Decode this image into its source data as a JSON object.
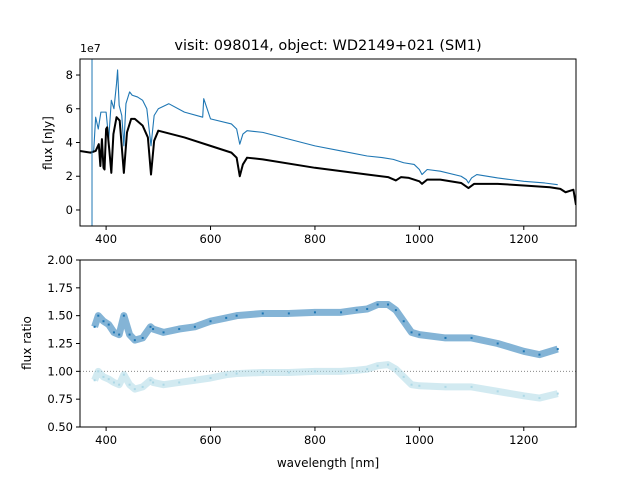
{
  "chart_data": [
    {
      "type": "line",
      "title": "visit: 098014, object: WD2149+021 (SM1)",
      "xlabel": "",
      "ylabel": "flux [nJy]",
      "offset_label": "1e7",
      "xlim": [
        350,
        1300
      ],
      "ylim": [
        -0.95,
        8.95
      ],
      "xticks": [
        400,
        600,
        800,
        1000,
        1200
      ],
      "xtick_labels": [
        "400",
        "600",
        "800",
        "1000",
        "1200"
      ],
      "yticks": [
        0,
        2,
        4,
        6,
        8
      ],
      "ytick_labels": [
        "0",
        "2",
        "4",
        "6",
        "8"
      ],
      "series": [
        {
          "name": "observed",
          "color": "#1f77b4",
          "x": [
            376,
            380,
            385,
            390,
            400,
            405,
            410,
            415,
            420,
            422,
            425,
            430,
            434,
            438,
            445,
            450,
            460,
            470,
            478,
            486,
            492,
            500,
            520,
            550,
            585,
            587,
            600,
            640,
            650,
            656,
            662,
            670,
            700,
            750,
            800,
            850,
            900,
            930,
            950,
            970,
            990,
            1000,
            1005,
            1015,
            1040,
            1080,
            1090,
            1094,
            1100,
            1110,
            1150,
            1200,
            1240,
            1265
          ],
          "y": [
            3.4,
            5.5,
            4.8,
            5.8,
            5.8,
            4.2,
            6.5,
            6.0,
            7.5,
            8.3,
            6.2,
            5.6,
            3.8,
            6.3,
            7.0,
            6.8,
            6.7,
            6.5,
            6.0,
            3.8,
            5.6,
            6.0,
            6.3,
            5.8,
            5.5,
            6.6,
            5.4,
            5.1,
            4.8,
            3.9,
            4.5,
            4.7,
            4.6,
            4.2,
            3.8,
            3.5,
            3.2,
            3.1,
            3.0,
            2.8,
            2.7,
            2.4,
            2.1,
            2.4,
            2.3,
            2.0,
            1.8,
            1.6,
            1.9,
            2.1,
            1.9,
            1.7,
            1.6,
            1.5
          ]
        },
        {
          "name": "model",
          "color": "#000000",
          "x": [
            350,
            370,
            380,
            386,
            389,
            392,
            395,
            397,
            400,
            402,
            406,
            410,
            414,
            420,
            426,
            434,
            440,
            448,
            455,
            470,
            480,
            486,
            492,
            500,
            550,
            600,
            640,
            650,
            656,
            662,
            670,
            700,
            800,
            900,
            940,
            955,
            965,
            980,
            1000,
            1005,
            1015,
            1040,
            1080,
            1094,
            1105,
            1150,
            1200,
            1250,
            1270,
            1280,
            1295,
            1300
          ],
          "y": [
            3.5,
            3.4,
            3.5,
            3.9,
            2.6,
            4.2,
            2.5,
            2.4,
            4.8,
            4.9,
            3.6,
            2.2,
            4.5,
            5.5,
            5.3,
            2.2,
            4.6,
            5.4,
            5.4,
            5.0,
            4.3,
            2.1,
            4.1,
            4.7,
            4.3,
            3.8,
            3.4,
            3.1,
            2.0,
            2.7,
            3.1,
            3.0,
            2.5,
            2.1,
            1.95,
            1.75,
            1.95,
            1.9,
            1.7,
            1.55,
            1.8,
            1.8,
            1.6,
            1.3,
            1.55,
            1.55,
            1.45,
            1.35,
            1.25,
            1.05,
            1.2,
            0.3
          ]
        },
        {
          "name": "spike",
          "color": "#1f77b4",
          "x": [
            373,
            373
          ],
          "y": [
            -0.95,
            8.95
          ]
        }
      ]
    },
    {
      "type": "scatter",
      "title": "",
      "xlabel": "wavelength [nm]",
      "ylabel": "flux ratio",
      "xlim": [
        350,
        1300
      ],
      "ylim": [
        0.5,
        2.0
      ],
      "xticks": [
        400,
        600,
        800,
        1000,
        1200
      ],
      "xtick_labels": [
        "400",
        "600",
        "800",
        "1000",
        "1200"
      ],
      "yticks": [
        0.5,
        0.75,
        1.0,
        1.25,
        1.5,
        1.75,
        2.0
      ],
      "ytick_labels": [
        "0.50",
        "0.75",
        "1.00",
        "1.25",
        "1.50",
        "1.75",
        "2.00"
      ],
      "reference_line": 1.0,
      "series": [
        {
          "name": "ratio",
          "color": "#1f77b4",
          "x": [
            378,
            385,
            395,
            405,
            415,
            425,
            434,
            445,
            455,
            470,
            485,
            490,
            510,
            540,
            570,
            600,
            630,
            650,
            700,
            750,
            800,
            850,
            880,
            900,
            920,
            940,
            955,
            970,
            985,
            1000,
            1050,
            1100,
            1150,
            1200,
            1230,
            1265
          ],
          "y": [
            1.4,
            1.5,
            1.45,
            1.42,
            1.35,
            1.33,
            1.5,
            1.33,
            1.28,
            1.3,
            1.4,
            1.38,
            1.35,
            1.38,
            1.4,
            1.45,
            1.48,
            1.5,
            1.52,
            1.52,
            1.53,
            1.53,
            1.55,
            1.56,
            1.6,
            1.6,
            1.55,
            1.45,
            1.35,
            1.33,
            1.3,
            1.3,
            1.25,
            1.18,
            1.15,
            1.2
          ]
        },
        {
          "name": "normalized ratio",
          "color": "#add8e6",
          "x": [
            378,
            385,
            395,
            405,
            415,
            425,
            434,
            445,
            455,
            470,
            485,
            490,
            510,
            540,
            570,
            600,
            630,
            650,
            700,
            750,
            800,
            850,
            880,
            900,
            920,
            940,
            955,
            970,
            985,
            1000,
            1050,
            1100,
            1150,
            1200,
            1230,
            1265
          ],
          "y": [
            0.92,
            1.0,
            0.95,
            0.93,
            0.9,
            0.88,
            0.97,
            0.88,
            0.84,
            0.86,
            0.92,
            0.9,
            0.88,
            0.9,
            0.92,
            0.94,
            0.97,
            0.98,
            0.99,
            0.99,
            1.0,
            1.0,
            1.01,
            1.02,
            1.05,
            1.06,
            1.02,
            0.95,
            0.88,
            0.87,
            0.86,
            0.86,
            0.82,
            0.78,
            0.76,
            0.8
          ]
        }
      ]
    }
  ]
}
